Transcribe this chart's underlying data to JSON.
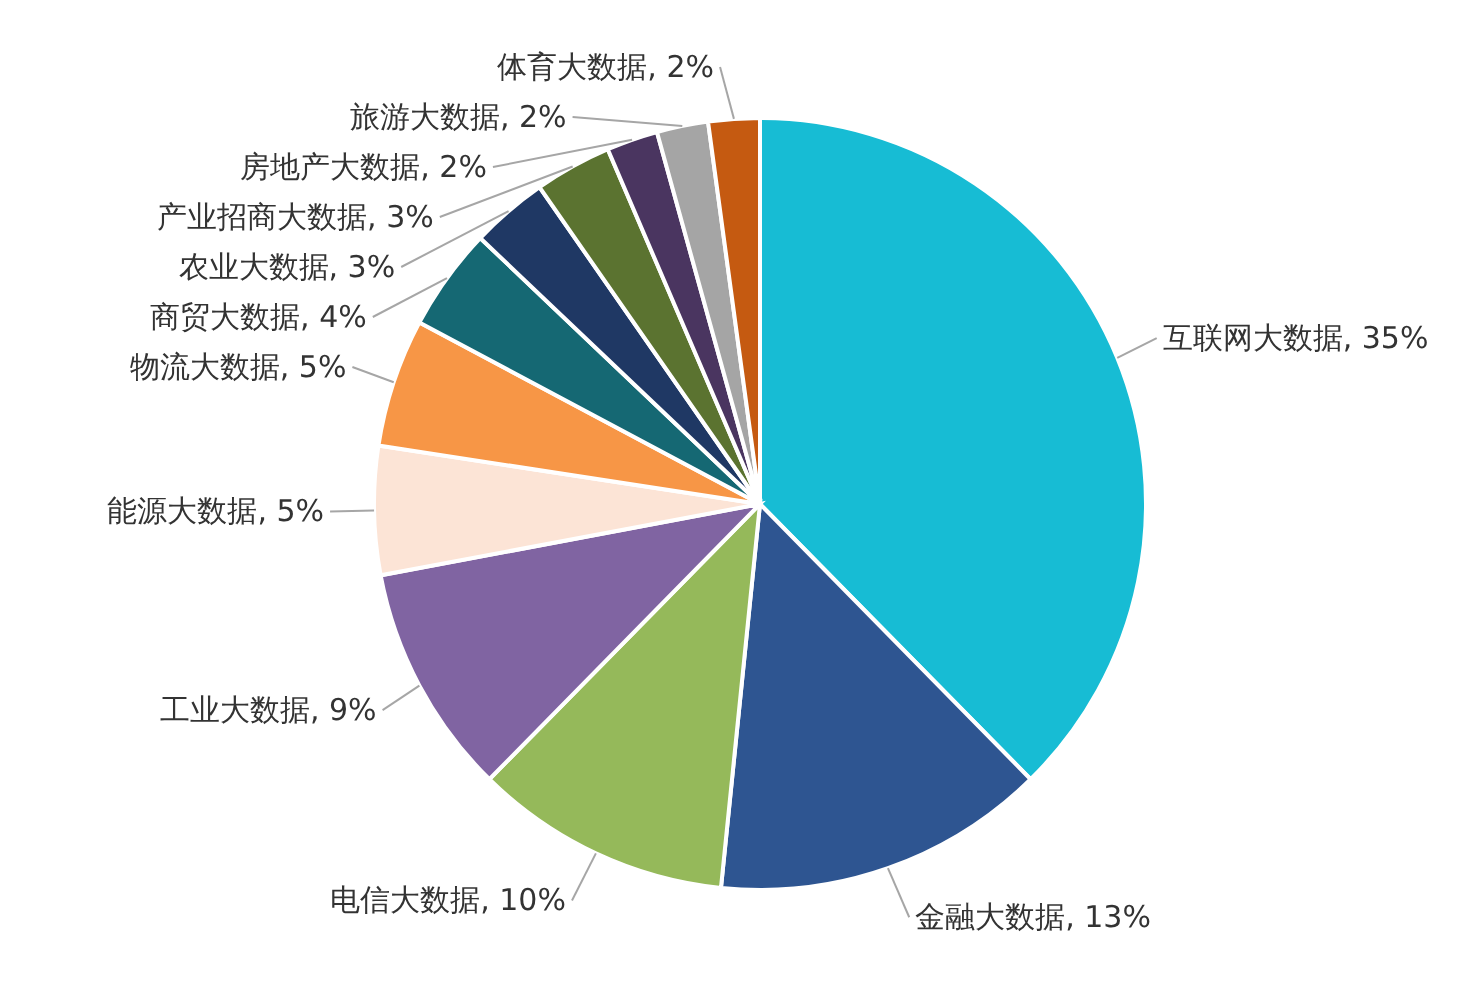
{
  "chart_data": {
    "type": "pie",
    "categories": [
      "互联网大数据",
      "金融大数据",
      "电信大数据",
      "工业大数据",
      "能源大数据",
      "物流大数据",
      "商贸大数据",
      "农业大数据",
      "产业招商大数据",
      "房地产大数据",
      "旅游大数据",
      "体育大数据"
    ],
    "values": [
      35,
      13,
      10,
      9,
      5,
      5,
      4,
      3,
      3,
      2,
      2,
      2
    ],
    "colors": [
      "#17bcd4",
      "#2e5591",
      "#95b95a",
      "#8064a2",
      "#fce4d6",
      "#f79646",
      "#156873",
      "#1f3864",
      "#5b7330",
      "#4a3560",
      "#a5a5a5",
      "#c55a11"
    ],
    "value_labels": [
      "35%",
      "13%",
      "10%",
      "9%",
      "5%",
      "5%",
      "4%",
      "3%",
      "3%",
      "2%",
      "2%",
      "2%"
    ],
    "legend": false
  }
}
